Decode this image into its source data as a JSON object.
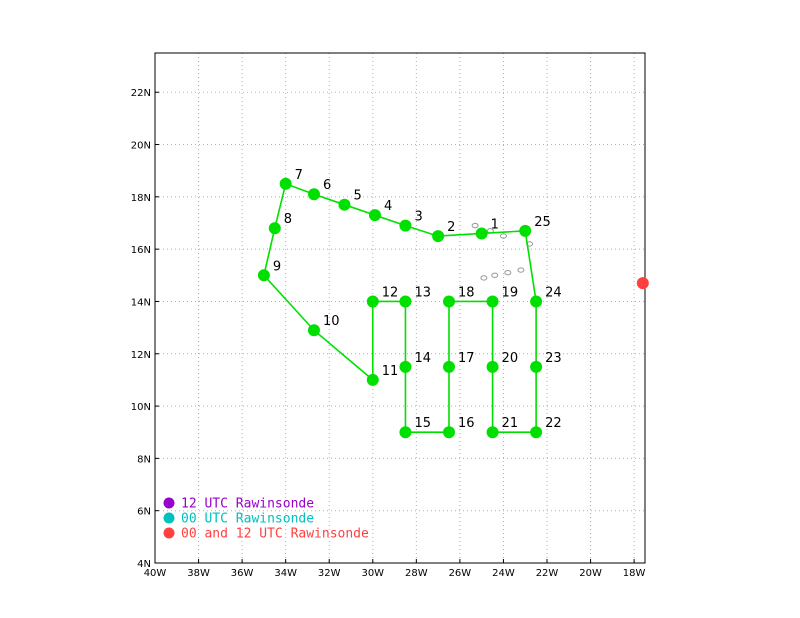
{
  "chart_data": {
    "type": "map",
    "x_axis": {
      "range": [
        -40,
        -17.5
      ],
      "ticks": [
        {
          "value": -40,
          "label": "40W"
        },
        {
          "value": -38,
          "label": "38W"
        },
        {
          "value": -36,
          "label": "36W"
        },
        {
          "value": -34,
          "label": "34W"
        },
        {
          "value": -32,
          "label": "32W"
        },
        {
          "value": -30,
          "label": "30W"
        },
        {
          "value": -28,
          "label": "28W"
        },
        {
          "value": -26,
          "label": "26W"
        },
        {
          "value": -24,
          "label": "24W"
        },
        {
          "value": -22,
          "label": "22W"
        },
        {
          "value": -20,
          "label": "20W"
        },
        {
          "value": -18,
          "label": "18W"
        }
      ]
    },
    "y_axis": {
      "range": [
        4,
        23.5
      ],
      "ticks": [
        {
          "value": 4,
          "label": "4N"
        },
        {
          "value": 6,
          "label": "6N"
        },
        {
          "value": 8,
          "label": "8N"
        },
        {
          "value": 10,
          "label": "10N"
        },
        {
          "value": 12,
          "label": "12N"
        },
        {
          "value": 14,
          "label": "14N"
        },
        {
          "value": 16,
          "label": "16N"
        },
        {
          "value": 18,
          "label": "18N"
        },
        {
          "value": 20,
          "label": "20N"
        },
        {
          "value": 22,
          "label": "22N"
        }
      ]
    },
    "grid": true,
    "track_color": "#00e000",
    "waypoints": [
      {
        "label": "1",
        "lon": -25.0,
        "lat": 16.6
      },
      {
        "label": "2",
        "lon": -27.0,
        "lat": 16.5
      },
      {
        "label": "3",
        "lon": -28.5,
        "lat": 16.9
      },
      {
        "label": "4",
        "lon": -29.9,
        "lat": 17.3
      },
      {
        "label": "5",
        "lon": -31.3,
        "lat": 17.7
      },
      {
        "label": "6",
        "lon": -32.7,
        "lat": 18.1
      },
      {
        "label": "7",
        "lon": -34.0,
        "lat": 18.5
      },
      {
        "label": "8",
        "lon": -34.5,
        "lat": 16.8
      },
      {
        "label": "9",
        "lon": -35.0,
        "lat": 15.0
      },
      {
        "label": "10",
        "lon": -32.7,
        "lat": 12.9
      },
      {
        "label": "11",
        "lon": -30.0,
        "lat": 11.0
      },
      {
        "label": "12",
        "lon": -30.0,
        "lat": 14.0
      },
      {
        "label": "13",
        "lon": -28.5,
        "lat": 14.0
      },
      {
        "label": "14",
        "lon": -28.5,
        "lat": 11.5
      },
      {
        "label": "15",
        "lon": -28.5,
        "lat": 9.0
      },
      {
        "label": "16",
        "lon": -26.5,
        "lat": 9.0
      },
      {
        "label": "17",
        "lon": -26.5,
        "lat": 11.5
      },
      {
        "label": "18",
        "lon": -26.5,
        "lat": 14.0
      },
      {
        "label": "19",
        "lon": -24.5,
        "lat": 14.0
      },
      {
        "label": "20",
        "lon": -24.5,
        "lat": 11.5
      },
      {
        "label": "21",
        "lon": -24.5,
        "lat": 9.0
      },
      {
        "label": "22",
        "lon": -22.5,
        "lat": 9.0
      },
      {
        "label": "23",
        "lon": -22.5,
        "lat": 11.5
      },
      {
        "label": "24",
        "lon": -22.5,
        "lat": 14.0
      },
      {
        "label": "25",
        "lon": -23.0,
        "lat": 16.7
      }
    ],
    "track_segments": [
      [
        "1",
        "2",
        "3",
        "4",
        "5",
        "6",
        "7",
        "8",
        "9",
        "10",
        "11",
        "12",
        "13",
        "14",
        "15",
        "16",
        "17",
        "18",
        "19",
        "20",
        "21",
        "22",
        "23",
        "24",
        "25",
        "1"
      ]
    ],
    "rawinsondes": [
      {
        "type": "00 and 12 UTC",
        "lon": -17.6,
        "lat": 14.7,
        "color": "#ff4040"
      }
    ],
    "islands": [
      {
        "lon": -25.3,
        "lat": 16.9
      },
      {
        "lon": -24.6,
        "lat": 16.7
      },
      {
        "lon": -24.0,
        "lat": 16.5
      },
      {
        "lon": -24.9,
        "lat": 14.9
      },
      {
        "lon": -24.4,
        "lat": 15.0
      },
      {
        "lon": -23.8,
        "lat": 15.1
      },
      {
        "lon": -23.2,
        "lat": 15.2
      },
      {
        "lon": -22.8,
        "lat": 16.2
      }
    ],
    "legend": [
      {
        "label": "12 UTC Rawinsonde",
        "color": "#9900cc"
      },
      {
        "label": "00 UTC Rawinsonde",
        "color": "#00c0c0"
      },
      {
        "label": "00 and 12 UTC Rawinsonde",
        "color": "#ff4040"
      }
    ],
    "legend_position": "bottom-left"
  }
}
